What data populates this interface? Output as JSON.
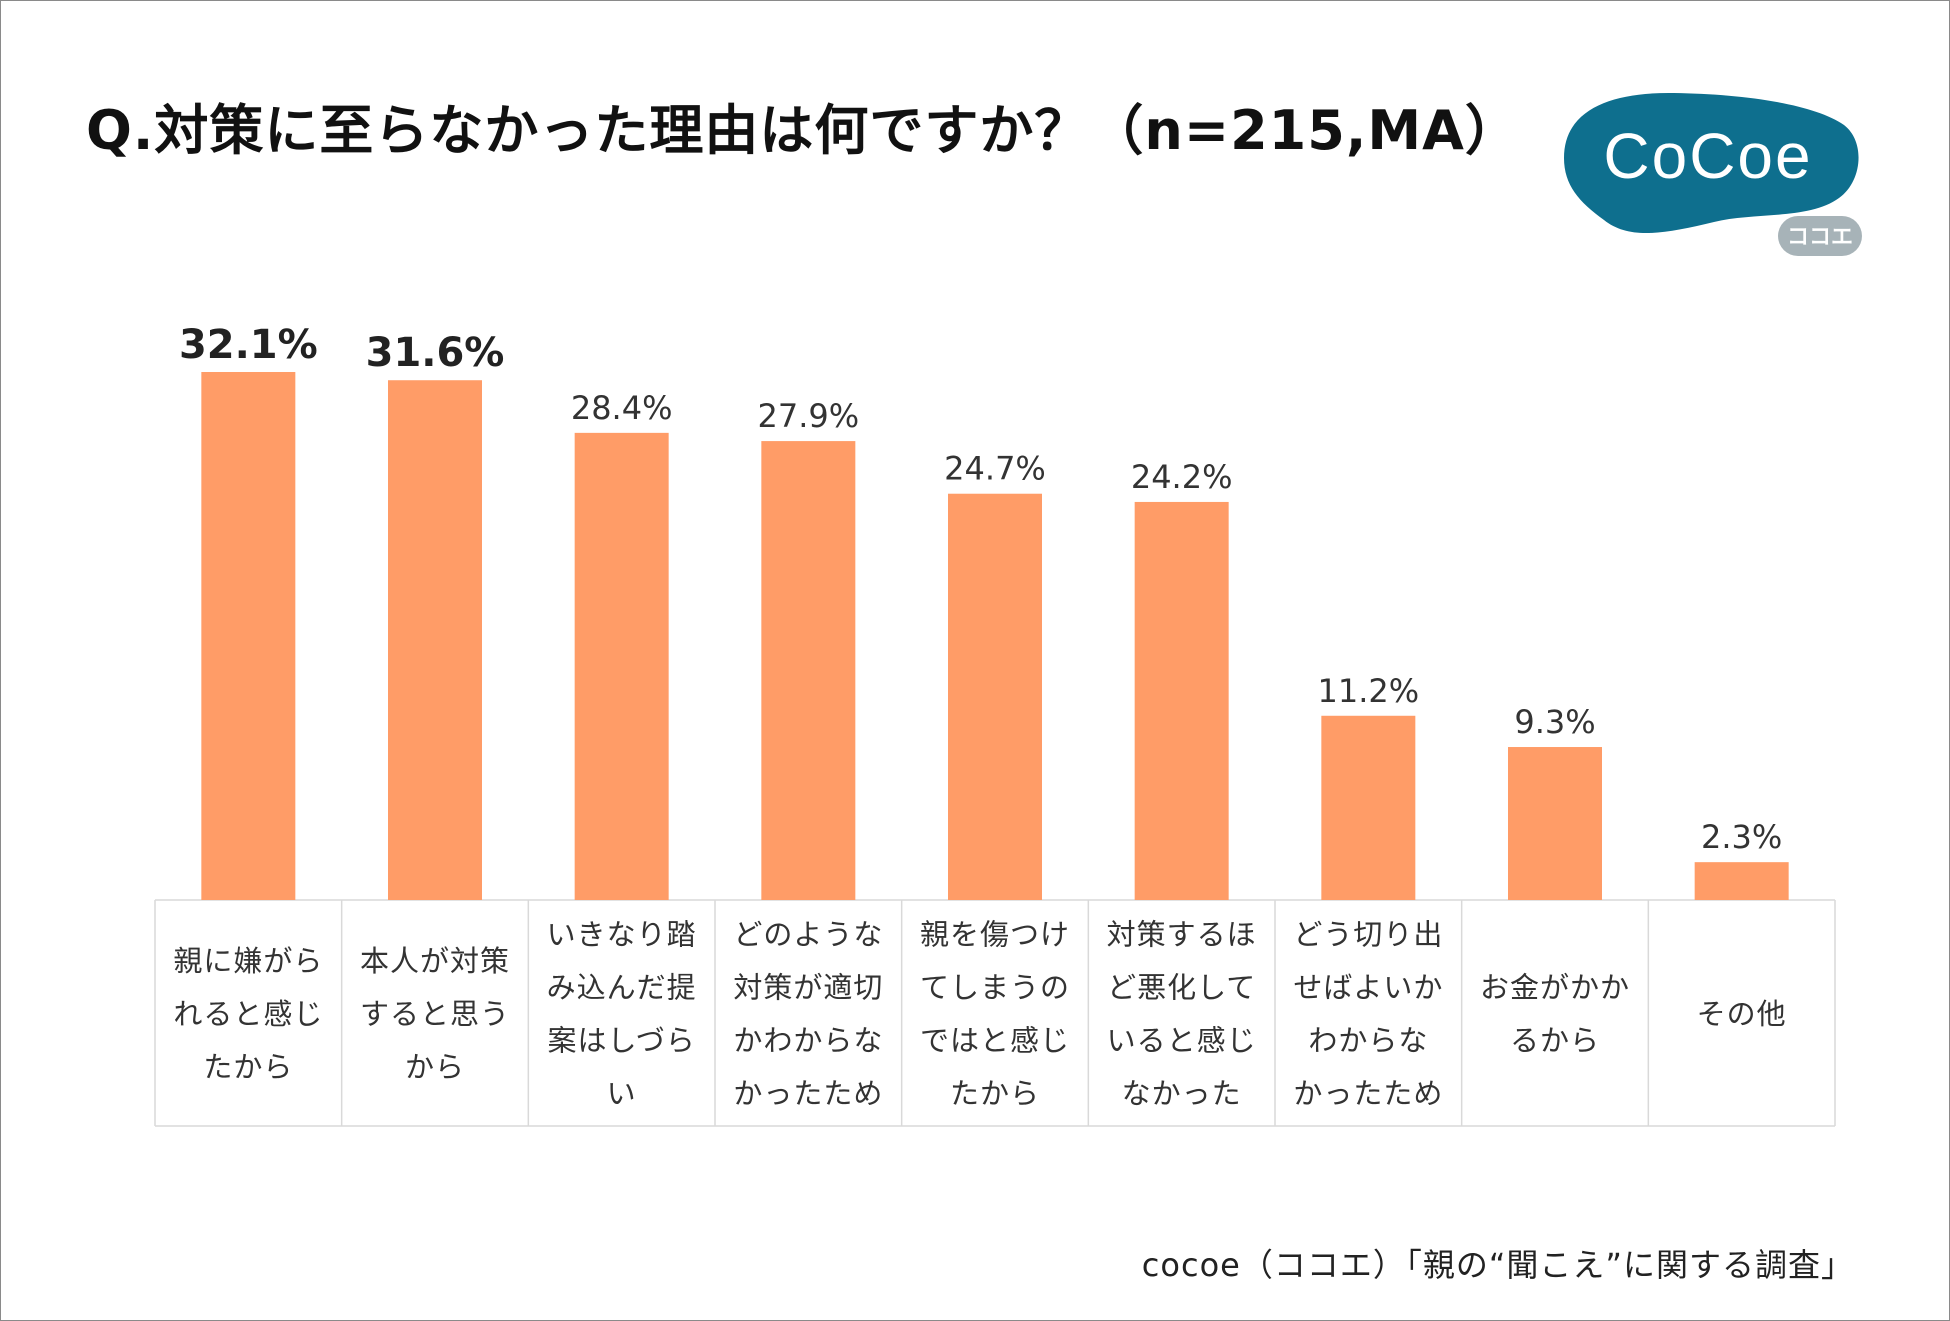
{
  "title": "Q.対策に至らなかった理由は何ですか？（n=215,MA）",
  "logo": {
    "text": "CoCoe",
    "sub": "ココエ",
    "color": "#0e6f8e",
    "sub_color": "#a7b3b8"
  },
  "footer": "cocoe（ココエ）「親の“聞こえ”に関する調査」",
  "colors": {
    "bar": "#ff9c67",
    "grid": "#d9d9d9",
    "label": "#333333"
  },
  "chart_data": {
    "type": "bar",
    "categories": [
      "親に嫌がられると感じたから",
      "本人が対策すると思うから",
      "いきなり踏み込んだ提案はしづらい",
      "どのような対策が適切かわからなかったため",
      "親を傷つけてしまうのではと感じたから",
      "対策するほど悪化していると感じなかった",
      "どう切り出せばよいかわからなかったため",
      "お金がかかるから",
      "その他"
    ],
    "category_lines": [
      [
        "親に嫌がら",
        "れると感じ",
        "たから"
      ],
      [
        "本人が対策",
        "すると思う",
        "から"
      ],
      [
        "いきなり踏",
        "み込んだ提",
        "案はしづら",
        "い"
      ],
      [
        "どのような",
        "対策が適切",
        "かわからな",
        "かったため"
      ],
      [
        "親を傷つけ",
        "てしまうの",
        "ではと感じ",
        "たから"
      ],
      [
        "対策するほ",
        "ど悪化して",
        "いると感じ",
        "なかった"
      ],
      [
        "どう切り出",
        "せばよいか",
        "わからな",
        "かったため"
      ],
      [
        "お金がかか",
        "るから"
      ],
      [
        "その他"
      ]
    ],
    "values": [
      32.1,
      31.6,
      28.4,
      27.9,
      24.7,
      24.2,
      11.2,
      9.3,
      2.3
    ],
    "value_labels": [
      "32.1%",
      "31.6%",
      "28.4%",
      "27.9%",
      "24.7%",
      "24.2%",
      "11.2%",
      "9.3%",
      "2.3%"
    ],
    "bold_labels": [
      true,
      true,
      false,
      false,
      false,
      false,
      false,
      false,
      false
    ],
    "ylim": [
      0,
      35
    ],
    "unit": "%",
    "grid": false,
    "legend": "none"
  }
}
